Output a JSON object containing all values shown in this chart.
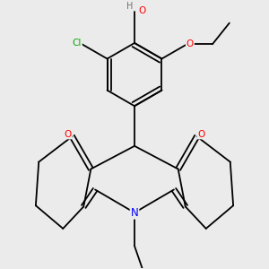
{
  "background_color": "#ebebeb",
  "bond_color": "#000000",
  "atom_colors": {
    "O": "#ff0000",
    "N": "#0000ff",
    "Cl": "#00aa00",
    "H": "#707070",
    "C": "#000000"
  },
  "figsize": [
    3.0,
    3.0
  ],
  "dpi": 100
}
